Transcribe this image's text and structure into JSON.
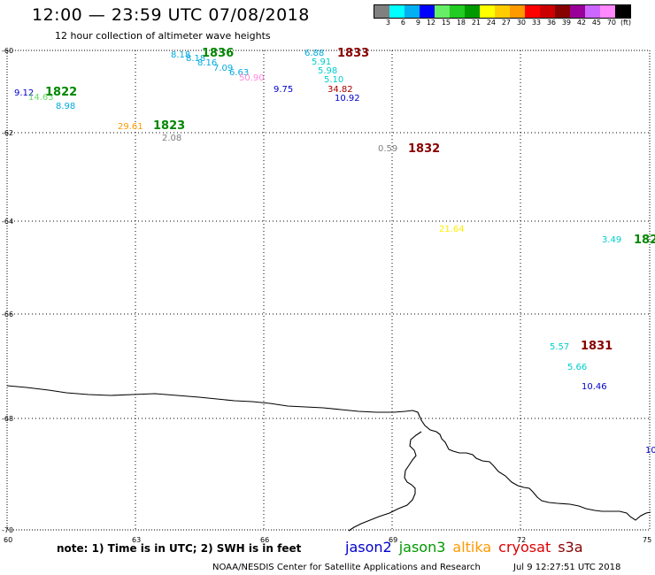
{
  "header": {
    "title": "12:00 — 23:59 UTC 07/08/2018",
    "subtitle": "12 hour collection of altimeter wave heights"
  },
  "legend": {
    "colors": [
      "#808080",
      "#00ffff",
      "#00b0f0",
      "#0000ff",
      "#66ee66",
      "#22cc22",
      "#009900",
      "#ffff00",
      "#ffcc00",
      "#ff9900",
      "#ff0000",
      "#cc0000",
      "#880000",
      "#990099",
      "#cc66ff",
      "#ff88ff",
      "#000000"
    ],
    "labels": [
      "3",
      "6",
      "9",
      "12",
      "15",
      "18",
      "21",
      "24",
      "27",
      "30",
      "33",
      "36",
      "39",
      "42",
      "45",
      "70",
      "(ft)"
    ]
  },
  "axes": {
    "y_labels": [
      "-60",
      "-62",
      "-64",
      "-66",
      "-68",
      "-70"
    ],
    "x_labels": [
      "60",
      "63",
      "66",
      "69",
      "72",
      "75"
    ]
  },
  "observations": [
    {
      "text": "8.18",
      "color": "#00aadd"
    },
    {
      "text": "8.18",
      "color": "#00aadd"
    },
    {
      "text": "1836",
      "color": "#008800",
      "bold": true
    },
    {
      "text": "8.16",
      "color": "#00aadd"
    },
    {
      "text": "7.09",
      "color": "#00aadd"
    },
    {
      "text": "6.63",
      "color": "#00aadd"
    },
    {
      "text": "50.90",
      "color": "#ff88dd"
    },
    {
      "text": "9.75",
      "color": "#0000cc"
    },
    {
      "text": "6.88",
      "color": "#00aadd"
    },
    {
      "text": "1833",
      "color": "#880000",
      "bold": true
    },
    {
      "text": "5.91",
      "color": "#00cccc"
    },
    {
      "text": "5.98",
      "color": "#00cccc"
    },
    {
      "text": "5.10",
      "color": "#00cccc"
    },
    {
      "text": "34.82",
      "color": "#aa0000"
    },
    {
      "text": "10.92",
      "color": "#0000cc"
    },
    {
      "text": "9.12",
      "color": "#0000cc"
    },
    {
      "text": "14.63",
      "color": "#66dd66"
    },
    {
      "text": "1822",
      "color": "#008800",
      "bold": true
    },
    {
      "text": "8.98",
      "color": "#00aadd"
    },
    {
      "text": "29.61",
      "color": "#ff9900"
    },
    {
      "text": "1823",
      "color": "#008800",
      "bold": true
    },
    {
      "text": "2.08",
      "color": "#808080"
    },
    {
      "text": "0.59",
      "color": "#808080"
    },
    {
      "text": "1832",
      "color": "#880000",
      "bold": true
    },
    {
      "text": "21.64",
      "color": "#ffee00"
    },
    {
      "text": "3.49",
      "color": "#00cccc"
    },
    {
      "text": "182",
      "color": "#008800",
      "bold": true
    },
    {
      "text": "5.57",
      "color": "#00cccc"
    },
    {
      "text": "1831",
      "color": "#880000",
      "bold": true
    },
    {
      "text": "5.66",
      "color": "#00cccc"
    },
    {
      "text": "10.46",
      "color": "#0000cc"
    },
    {
      "text": "10",
      "color": "#0000cc"
    }
  ],
  "note": "note: 1) Time is in UTC; 2) SWH is in feet",
  "satellites": [
    {
      "name": "jason2",
      "color": "#0000cc"
    },
    {
      "name": "jason3",
      "color": "#009900"
    },
    {
      "name": "altika",
      "color": "#ff9900"
    },
    {
      "name": "cryosat",
      "color": "#dd0000"
    },
    {
      "name": "s3a",
      "color": "#880000"
    }
  ],
  "footer": {
    "credit": "NOAA/NESDIS Center for Satellite Applications and Research",
    "timestamp": "Jul  9 12:27:51 UTC 2018"
  }
}
